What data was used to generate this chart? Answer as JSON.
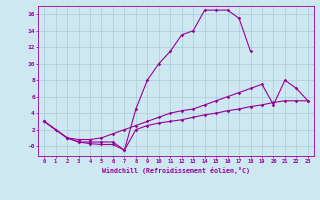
{
  "xlabel": "Windchill (Refroidissement éolien,°C)",
  "bg_color": "#cde8f0",
  "grid_color": "#a8ccd8",
  "line_color": "#990099",
  "xlim": [
    -0.5,
    23.5
  ],
  "ylim": [
    -1.2,
    17
  ],
  "xticks": [
    0,
    1,
    2,
    3,
    4,
    5,
    6,
    7,
    8,
    9,
    10,
    11,
    12,
    13,
    14,
    15,
    16,
    17,
    18,
    19,
    20,
    21,
    22,
    23
  ],
  "yticks": [
    0,
    2,
    4,
    6,
    8,
    10,
    12,
    14,
    16
  ],
  "ytick_labels": [
    "-0",
    "2",
    "4",
    "6",
    "8",
    "10",
    "12",
    "14",
    "16"
  ],
  "curve1_x": [
    0,
    1,
    2,
    3,
    4,
    5,
    6,
    7,
    8,
    9,
    10,
    11,
    12,
    13,
    14,
    15,
    16,
    17,
    18
  ],
  "curve1_y": [
    3.0,
    2.0,
    1.0,
    0.5,
    0.3,
    0.2,
    0.2,
    -0.5,
    4.5,
    8.0,
    10.0,
    11.5,
    13.5,
    14.0,
    16.5,
    16.5,
    16.5,
    15.5,
    11.5
  ],
  "curve2_x": [
    0,
    2,
    3,
    4,
    5,
    6,
    7,
    8,
    9,
    10,
    11,
    12,
    13,
    14,
    15,
    16,
    17,
    18,
    19,
    20,
    21,
    22,
    23
  ],
  "curve2_y": [
    3.0,
    1.0,
    0.8,
    0.8,
    1.0,
    1.5,
    2.0,
    2.5,
    3.0,
    3.5,
    4.0,
    4.3,
    4.5,
    5.0,
    5.5,
    6.0,
    6.5,
    7.0,
    7.5,
    5.0,
    8.0,
    7.0,
    5.5
  ],
  "curve3_x": [
    0,
    2,
    3,
    4,
    5,
    6,
    7,
    8,
    9,
    10,
    11,
    12,
    13,
    14,
    15,
    16,
    17,
    18,
    19,
    20,
    21,
    22,
    23
  ],
  "curve3_y": [
    3.0,
    1.0,
    0.5,
    0.5,
    0.5,
    0.5,
    -0.5,
    2.0,
    2.5,
    2.8,
    3.0,
    3.2,
    3.5,
    3.8,
    4.0,
    4.3,
    4.5,
    4.8,
    5.0,
    5.3,
    5.5,
    5.5,
    5.5
  ]
}
